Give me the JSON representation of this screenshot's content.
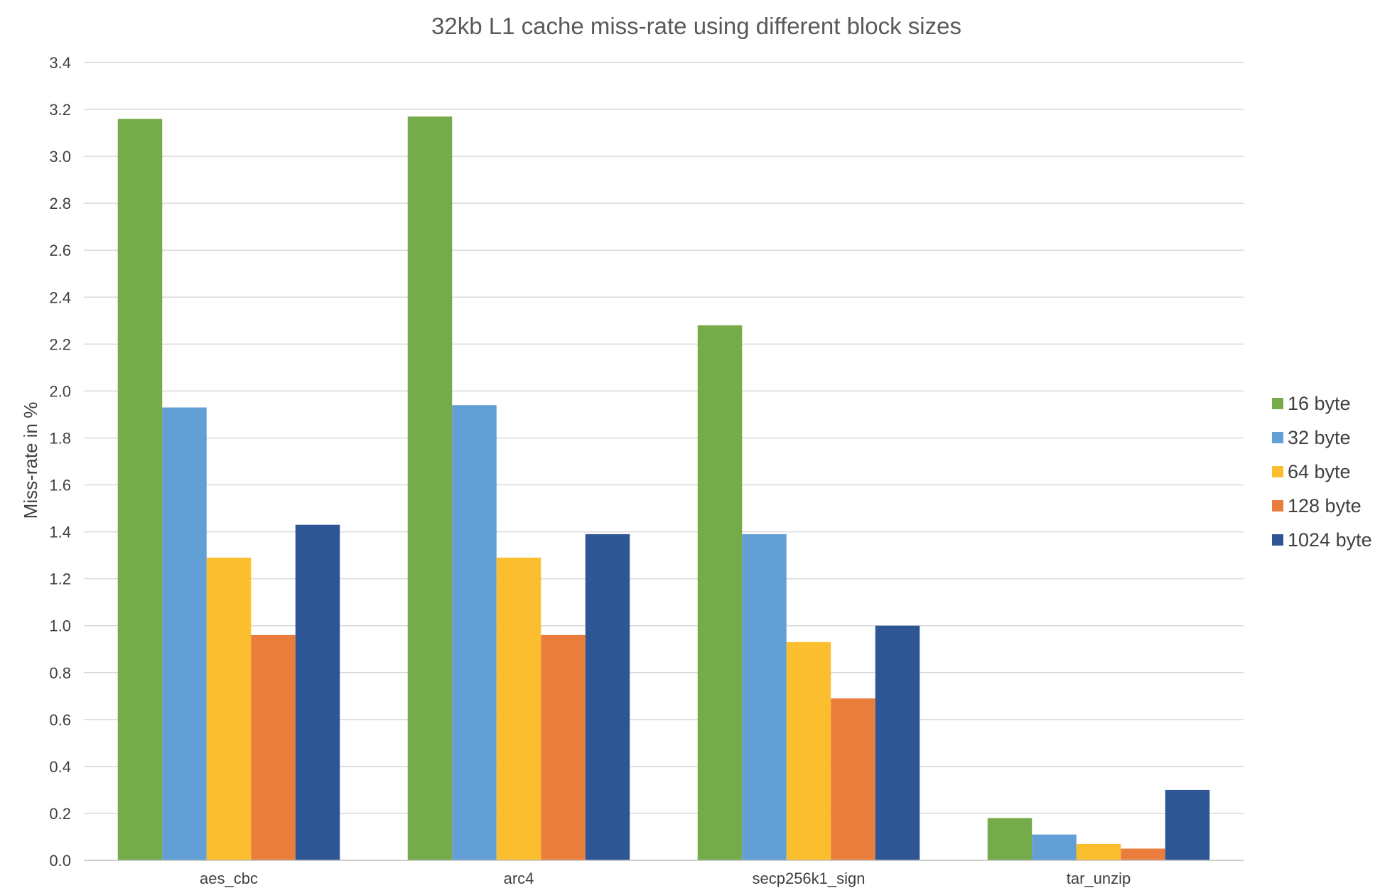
{
  "chart_data": {
    "type": "bar",
    "title": "32kb L1 cache miss-rate using different block sizes",
    "xlabel": "",
    "ylabel": "Miss-rate in %",
    "ylim": [
      0,
      3.4
    ],
    "ytick_step": 0.2,
    "grid": true,
    "legend_position": "right",
    "categories": [
      "aes_cbc",
      "arc4",
      "secp256k1_sign",
      "tar_unzip"
    ],
    "series": [
      {
        "name": "16 byte",
        "color": "#76ab4a",
        "values": [
          3.16,
          3.17,
          2.28,
          0.18
        ]
      },
      {
        "name": "32 byte",
        "color": "#619fd5",
        "values": [
          1.93,
          1.94,
          1.39,
          0.11
        ]
      },
      {
        "name": "64 byte",
        "color": "#fbbe2e",
        "values": [
          1.29,
          1.29,
          0.93,
          0.07
        ]
      },
      {
        "name": "128 byte",
        "color": "#eb7d3c",
        "values": [
          0.96,
          0.96,
          0.69,
          0.05
        ]
      },
      {
        "name": "1024 byte",
        "color": "#2f5694",
        "values": [
          1.43,
          1.39,
          1.0,
          0.3
        ]
      }
    ]
  }
}
